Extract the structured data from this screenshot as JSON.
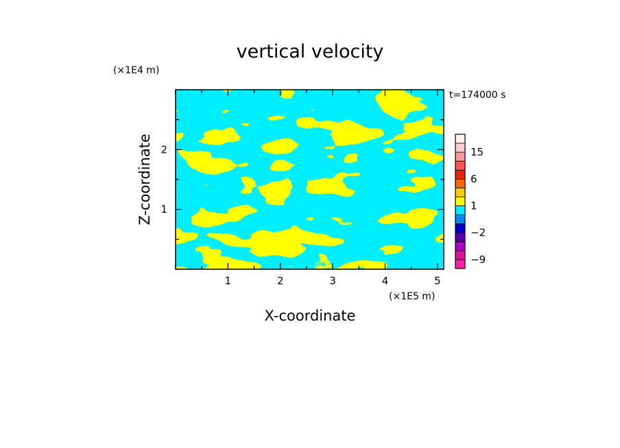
{
  "chart_data": {
    "type": "heatmap",
    "title": "vertical velocity",
    "xlabel": "X-coordinate",
    "ylabel": "Z-coordinate",
    "x_unit": "(×1E5 m)",
    "y_unit": "(×1E4 m)",
    "time_stamp": "t=174000 s",
    "xlim": [
      0,
      5.12
    ],
    "ylim": [
      0,
      3.0
    ],
    "x_ticks": [
      1,
      2,
      3,
      4,
      5
    ],
    "x_tick_labels": [
      "1",
      "2",
      "3",
      "4",
      "5"
    ],
    "y_ticks": [
      1,
      2
    ],
    "y_tick_labels": [
      "1",
      "2"
    ],
    "fill_colors": {
      "positive": "#ffff00",
      "negative": "#00eeff"
    },
    "colorbar": {
      "levels": [
        -12,
        -9,
        -6,
        -4,
        -2,
        -1,
        0,
        1,
        2,
        4,
        6,
        9,
        12,
        15,
        18,
        22
      ],
      "colors": [
        "#ff22aa",
        "#dd1199",
        "#aa00cc",
        "#5500aa",
        "#0000cc",
        "#0088ff",
        "#00eeff",
        "#ffff00",
        "#ffcc00",
        "#ff6600",
        "#ee2200",
        "#ff5555",
        "#ff9999",
        "#ffcccc",
        "#fff0ec"
      ],
      "labels": [
        {
          "value": 15,
          "text": "15"
        },
        {
          "value": 6,
          "text": "6"
        },
        {
          "value": 1,
          "text": "1"
        },
        {
          "value": -2,
          "text": "−2"
        },
        {
          "value": -9,
          "text": "−9"
        }
      ]
    }
  }
}
